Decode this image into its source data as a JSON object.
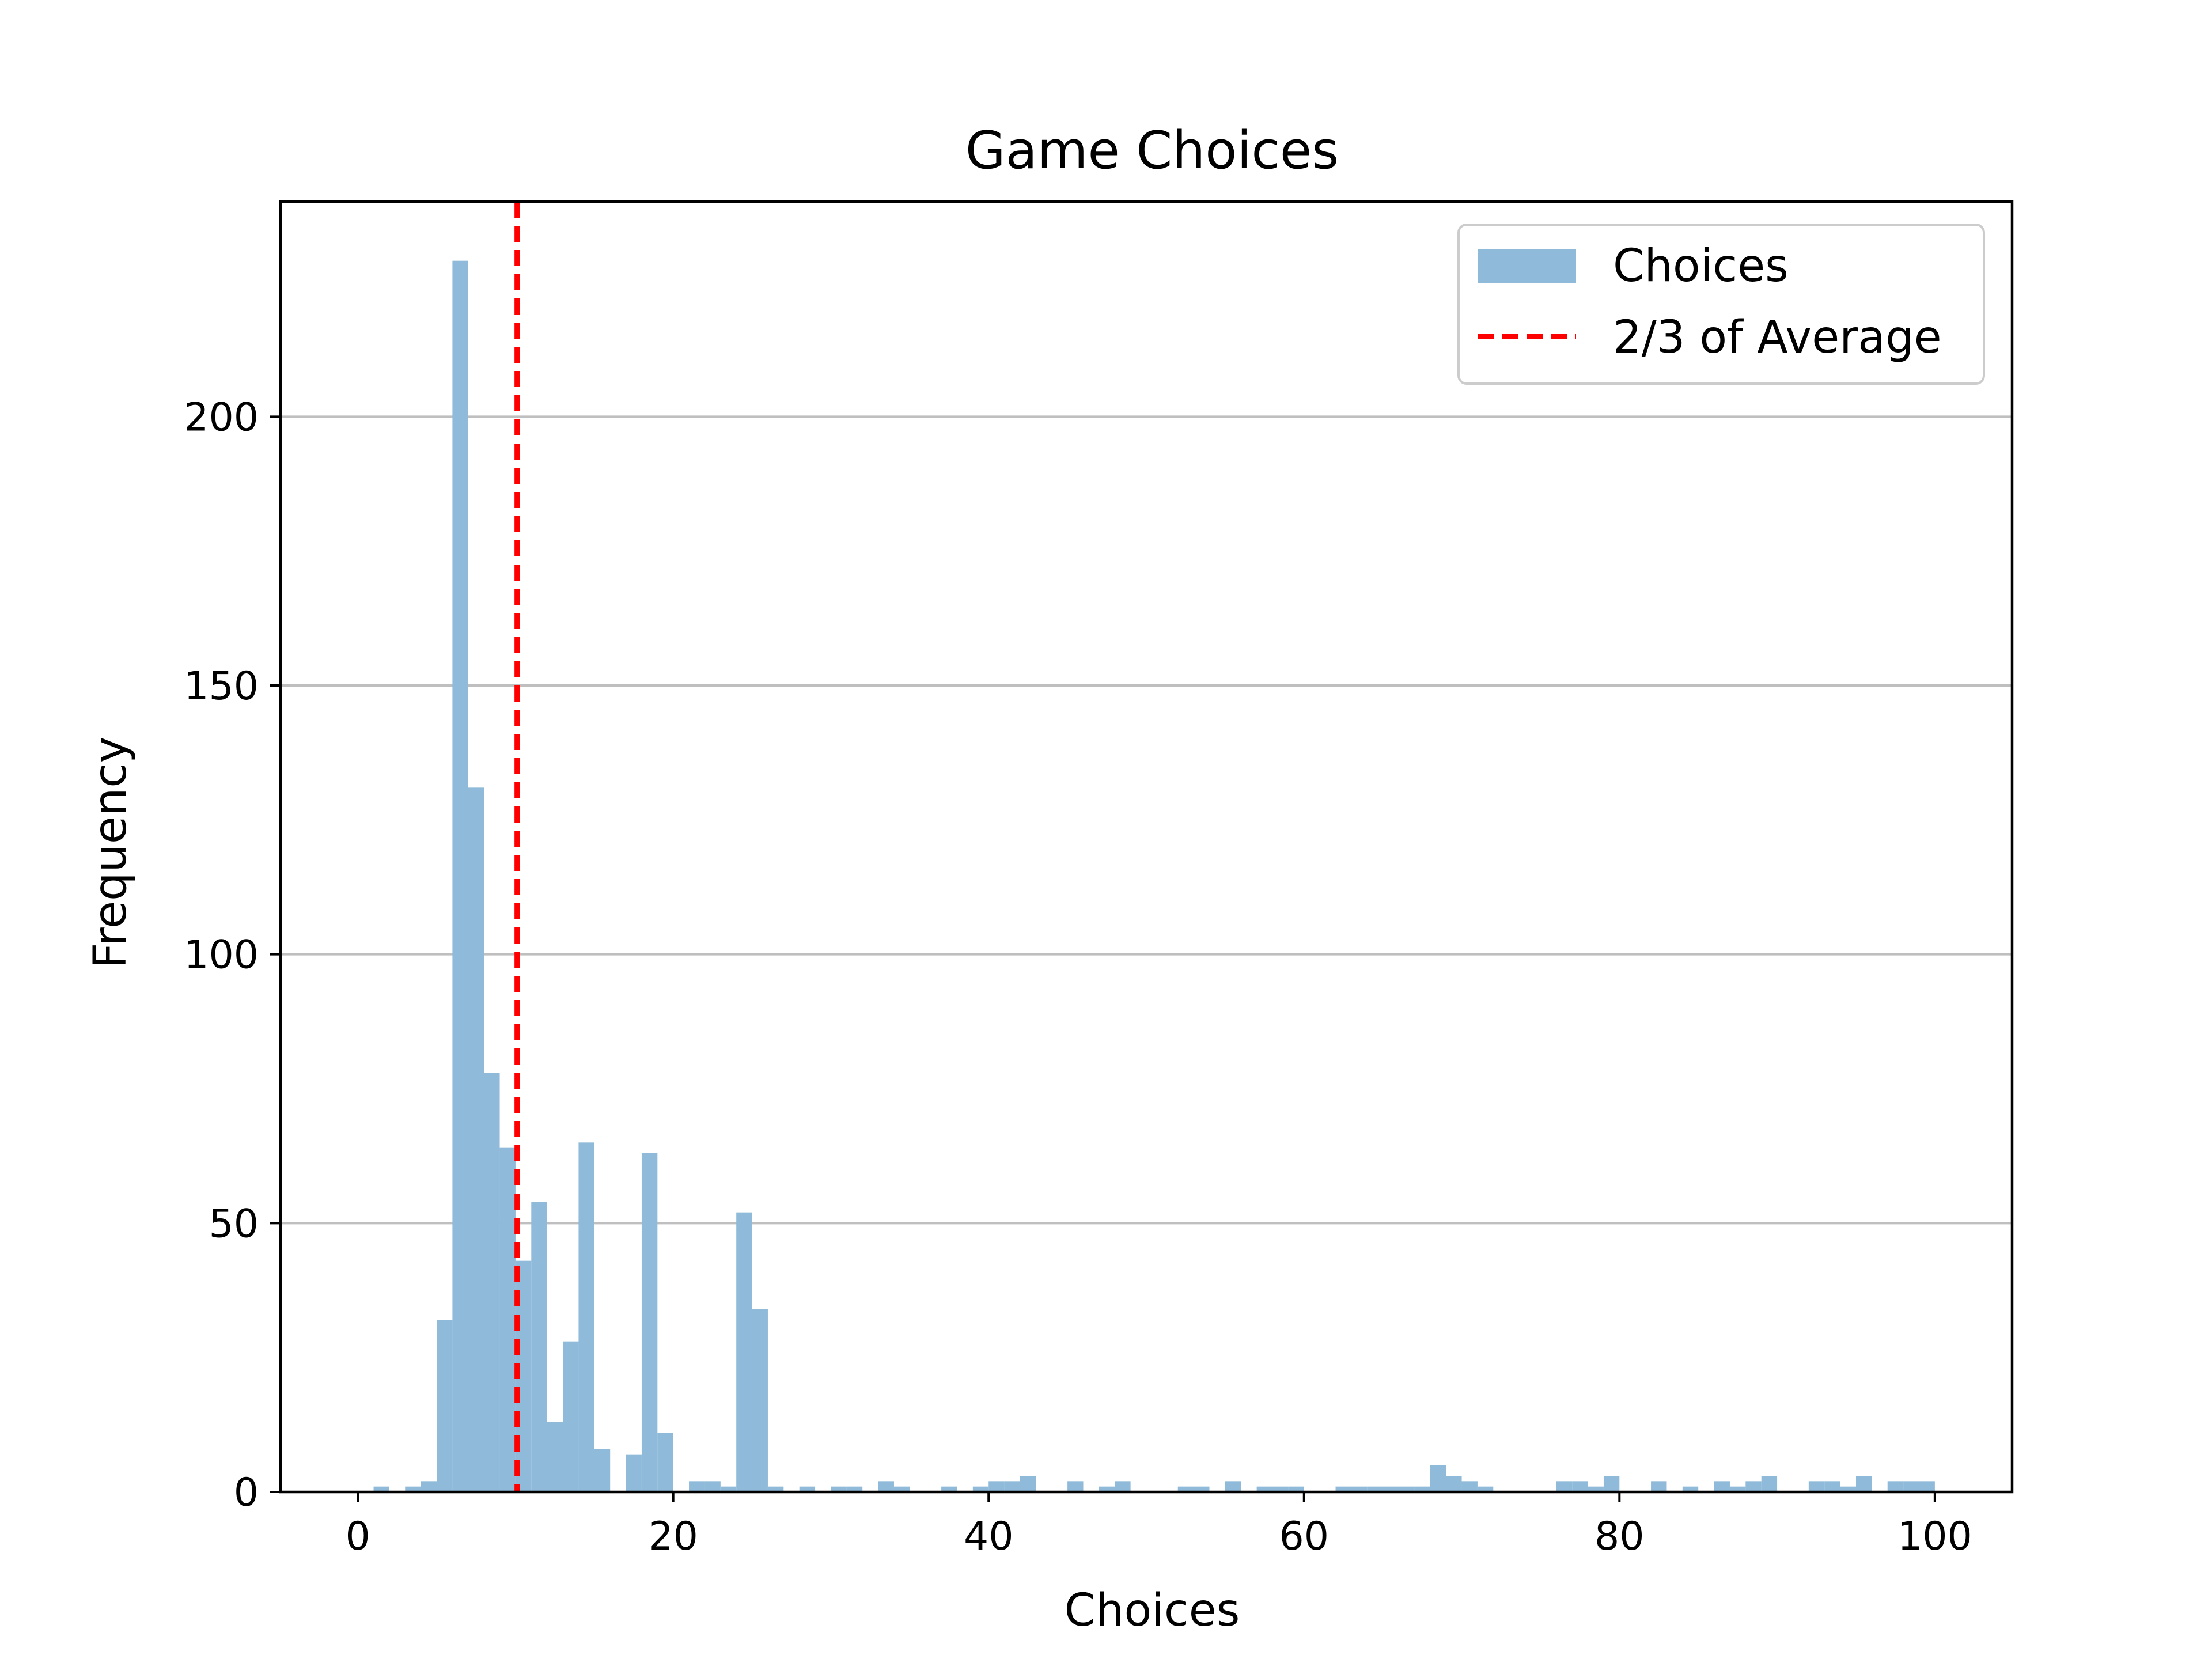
{
  "chart_data": {
    "type": "bar",
    "subtype": "histogram",
    "title": "Game Choices",
    "xlabel": "Choices",
    "ylabel": "Frequency",
    "xlim": [
      -4.9,
      104.9
    ],
    "ylim": [
      0,
      240
    ],
    "xticks": [
      0,
      20,
      40,
      60,
      80,
      100
    ],
    "yticks": [
      0,
      50,
      100,
      150,
      200
    ],
    "grid": "horizontal",
    "legend_position": "upper-right",
    "bin_width": 1,
    "bins_start": [
      1,
      3,
      4,
      5,
      6,
      7,
      8,
      9,
      10,
      11,
      12,
      13,
      14,
      15,
      17,
      18,
      19,
      21,
      22,
      23,
      24,
      25,
      26,
      28,
      30,
      31,
      33,
      34,
      37,
      39,
      40,
      41,
      42,
      45,
      47,
      48,
      52,
      53,
      55,
      57,
      58,
      59,
      62,
      63,
      64,
      65,
      66,
      67,
      68,
      69,
      70,
      71,
      76,
      77,
      78,
      79,
      82,
      84,
      86,
      87,
      88,
      89,
      92,
      93,
      94,
      95,
      97,
      98,
      99
    ],
    "counts": [
      1,
      1,
      2,
      32,
      229,
      131,
      78,
      64,
      43,
      54,
      13,
      28,
      65,
      8,
      7,
      63,
      11,
      2,
      2,
      1,
      52,
      34,
      1,
      1,
      1,
      1,
      2,
      1,
      1,
      1,
      2,
      2,
      3,
      2,
      1,
      2,
      1,
      1,
      2,
      1,
      1,
      1,
      1,
      1,
      1,
      1,
      1,
      1,
      5,
      3,
      2,
      1,
      2,
      2,
      1,
      3,
      2,
      1,
      2,
      1,
      2,
      3,
      2,
      2,
      1,
      3,
      2,
      2,
      2
    ],
    "reference_line": {
      "name": "2/3 of Average",
      "x": 10.1,
      "color": "#ff0000",
      "style": "dashed"
    },
    "series": [
      {
        "name": "Choices",
        "color": "#8fbad9"
      }
    ]
  }
}
